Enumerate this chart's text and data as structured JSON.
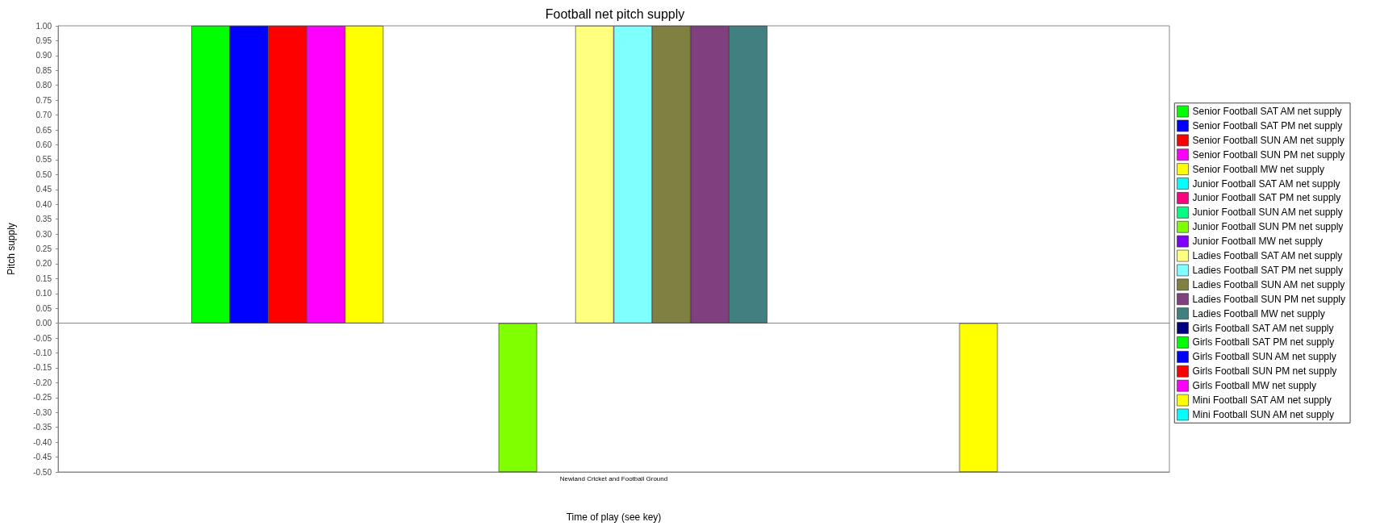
{
  "chart_data": {
    "type": "bar",
    "title": "Football net pitch supply",
    "xlabel": "Time of play (see key)",
    "ylabel": "Pitch supply",
    "categories": [
      "Newland Cricket and Football Ground"
    ],
    "series": [
      {
        "name": "Senior Football SAT AM net supply",
        "color": "#00ff00",
        "values": [
          1
        ]
      },
      {
        "name": "Senior Football SAT PM net supply",
        "color": "#0000ff",
        "values": [
          1
        ]
      },
      {
        "name": "Senior Football SUN AM net supply",
        "color": "#ff0000",
        "values": [
          1
        ]
      },
      {
        "name": "Senior Football SUN PM net supply",
        "color": "#ff00ff",
        "values": [
          1
        ]
      },
      {
        "name": "Senior Football MW net supply",
        "color": "#ffff00",
        "values": [
          1
        ]
      },
      {
        "name": "Junior Football SAT AM net supply",
        "color": "#00ffff",
        "values": [
          0
        ]
      },
      {
        "name": "Junior Football SAT PM net supply",
        "color": "#ff0080",
        "values": [
          0
        ]
      },
      {
        "name": "Junior Football SUN AM net supply",
        "color": "#00ff80",
        "values": [
          0
        ]
      },
      {
        "name": "Junior Football SUN PM net supply",
        "color": "#80ff00",
        "values": [
          -0.5
        ]
      },
      {
        "name": "Junior Football MW net supply",
        "color": "#8000ff",
        "values": [
          0
        ]
      },
      {
        "name": "Ladies Football SAT AM net supply",
        "color": "#ffff80",
        "values": [
          1
        ]
      },
      {
        "name": "Ladies Football SAT PM net supply",
        "color": "#80ffff",
        "values": [
          1
        ]
      },
      {
        "name": "Ladies Football SUN AM net supply",
        "color": "#808040",
        "values": [
          1
        ]
      },
      {
        "name": "Ladies Football SUN PM net supply",
        "color": "#804080",
        "values": [
          1
        ]
      },
      {
        "name": "Ladies Football MW net supply",
        "color": "#408080",
        "values": [
          1
        ]
      },
      {
        "name": "Girls Football SAT AM net supply",
        "color": "#000080",
        "values": [
          0
        ]
      },
      {
        "name": "Girls Football SAT PM net supply",
        "color": "#00ff00",
        "values": [
          0
        ]
      },
      {
        "name": "Girls Football SUN AM net supply",
        "color": "#0000ff",
        "values": [
          0
        ]
      },
      {
        "name": "Girls Football SUN PM net supply",
        "color": "#ff0000",
        "values": [
          0
        ]
      },
      {
        "name": "Girls Football MW net supply",
        "color": "#ff00ff",
        "values": [
          0
        ]
      },
      {
        "name": "Mini Football SAT AM net supply",
        "color": "#ffff00",
        "values": [
          -0.5
        ]
      },
      {
        "name": "Mini Football SUN AM net supply",
        "color": "#00ffff",
        "values": [
          0
        ]
      }
    ],
    "ylim": [
      -0.5,
      1
    ],
    "yticks": [
      {
        "value": -0.5,
        "label": "-0.50"
      },
      {
        "value": -0.45,
        "label": "-0.45"
      },
      {
        "value": -0.4,
        "label": "-0.40"
      },
      {
        "value": -0.35,
        "label": "-0.35"
      },
      {
        "value": -0.3,
        "label": "-0.30"
      },
      {
        "value": -0.25,
        "label": "-0.25"
      },
      {
        "value": -0.2,
        "label": "-0.20"
      },
      {
        "value": -0.15,
        "label": "-0.15"
      },
      {
        "value": -0.1,
        "label": "-0.10"
      },
      {
        "value": -0.05,
        "label": "-0.05"
      },
      {
        "value": 0,
        "label": "0.00"
      },
      {
        "value": 0.05,
        "label": "0.05"
      },
      {
        "value": 0.1,
        "label": "0.10"
      },
      {
        "value": 0.15,
        "label": "0.15"
      },
      {
        "value": 0.2,
        "label": "0.20"
      },
      {
        "value": 0.25,
        "label": "0.25"
      },
      {
        "value": 0.3,
        "label": "0.30"
      },
      {
        "value": 0.35,
        "label": "0.35"
      },
      {
        "value": 0.4,
        "label": "0.40"
      },
      {
        "value": 0.45,
        "label": "0.45"
      },
      {
        "value": 0.5,
        "label": "0.50"
      },
      {
        "value": 0.55,
        "label": "0.55"
      },
      {
        "value": 0.6,
        "label": "0.60"
      },
      {
        "value": 0.65,
        "label": "0.65"
      },
      {
        "value": 0.7,
        "label": "0.70"
      },
      {
        "value": 0.75,
        "label": "0.75"
      },
      {
        "value": 0.8,
        "label": "0.80"
      },
      {
        "value": 0.85,
        "label": "0.85"
      },
      {
        "value": 0.9,
        "label": "0.90"
      },
      {
        "value": 0.95,
        "label": "0.95"
      },
      {
        "value": 1,
        "label": "1.00"
      }
    ],
    "legend": "right"
  }
}
